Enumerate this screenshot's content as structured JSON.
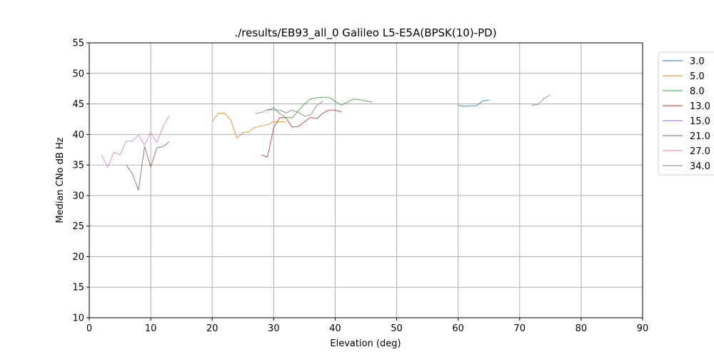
{
  "chart_data": {
    "type": "line",
    "title": "./results/EB93_all_0 Galileo L5-E5A(BPSK(10)-PD)",
    "xlabel": "Elevation (deg)",
    "ylabel": "Median CNo dB Hz",
    "xlim": [
      0,
      90
    ],
    "ylim": [
      10,
      55
    ],
    "xticks": [
      0,
      10,
      20,
      30,
      40,
      50,
      60,
      70,
      80,
      90
    ],
    "yticks": [
      10,
      15,
      20,
      25,
      30,
      35,
      40,
      45,
      50,
      55
    ],
    "grid": true,
    "legend_position": "right, outside plot area",
    "series": [
      {
        "name": "3.0",
        "color": "#1f77b4",
        "x": [
          60,
          61,
          62,
          63,
          64,
          65
        ],
        "y": [
          44.8,
          44.6,
          44.7,
          44.7,
          45.5,
          45.6
        ]
      },
      {
        "name": "5.0",
        "color": "#ff7f0e",
        "x": [
          20,
          21,
          22,
          23,
          24,
          25,
          26,
          27,
          28,
          29,
          30,
          31,
          32
        ],
        "y": [
          42.1,
          43.5,
          43.5,
          42.4,
          39.4,
          40.3,
          40.5,
          41.2,
          41.4,
          41.6,
          42.1,
          42.1,
          42.1
        ]
      },
      {
        "name": "8.0",
        "color": "#2ca02c",
        "x": [
          29,
          30,
          31,
          32,
          33,
          34,
          35,
          36,
          37,
          38,
          39,
          40,
          41,
          42,
          43,
          44,
          45,
          46
        ],
        "y": [
          43.9,
          44.4,
          43.4,
          42.8,
          42.7,
          43.9,
          45.0,
          45.8,
          46.0,
          46.1,
          46.1,
          45.4,
          44.8,
          45.3,
          45.8,
          45.7,
          45.5,
          45.3
        ]
      },
      {
        "name": "13.0",
        "color": "#d62728",
        "x": [
          28,
          29,
          30,
          31,
          32,
          33,
          34,
          35,
          36,
          37,
          38,
          39,
          40,
          41
        ],
        "y": [
          36.7,
          36.3,
          41.1,
          42.8,
          42.7,
          41.2,
          41.3,
          42.1,
          42.8,
          42.6,
          43.5,
          44.0,
          44.0,
          43.7
        ]
      },
      {
        "name": "15.0",
        "color": "#9467bd",
        "x": [
          72,
          73,
          74,
          75
        ],
        "y": [
          44.8,
          44.9,
          45.9,
          46.5
        ]
      },
      {
        "name": "21.0",
        "color": "#8c564b",
        "x": [
          6,
          7,
          8,
          9,
          10,
          11,
          12,
          13
        ],
        "y": [
          35.0,
          33.6,
          30.9,
          38.0,
          34.7,
          37.8,
          38.0,
          38.8
        ]
      },
      {
        "name": "27.0",
        "color": "#e377c2",
        "x": [
          2,
          3,
          4,
          5,
          6,
          7,
          8,
          9,
          10,
          11,
          12,
          13
        ],
        "y": [
          36.7,
          34.6,
          37.1,
          36.7,
          38.9,
          38.9,
          39.9,
          38.3,
          40.3,
          38.7,
          41.3,
          43.1
        ]
      },
      {
        "name": "34.0",
        "color": "#7f7f7f",
        "x": [
          27,
          28,
          29,
          30,
          31,
          32,
          33,
          34,
          35,
          36,
          37,
          38
        ],
        "y": [
          43.4,
          43.6,
          44.1,
          44.0,
          44.0,
          43.5,
          44.0,
          43.6,
          43.0,
          43.2,
          44.7,
          45.5
        ]
      }
    ]
  }
}
